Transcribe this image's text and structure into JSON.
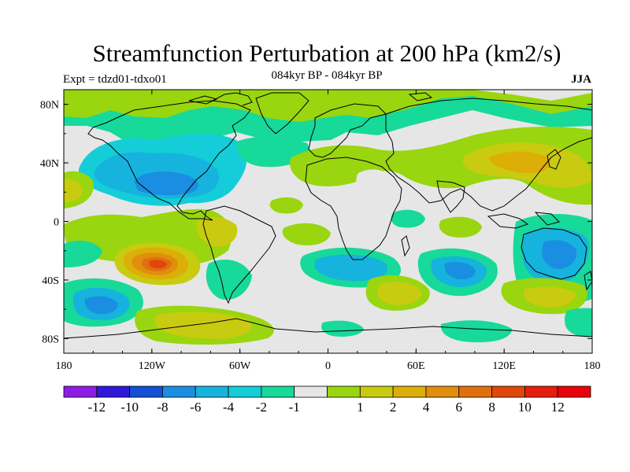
{
  "chart_data": {
    "type": "map",
    "title": "Streamfunction Perturbation at 200 hPa (km2/s)",
    "subtitle": "084kyr BP - 084kyr BP",
    "experiment": "Expt = tdzd01-tdxo01",
    "season": "JJA",
    "projection": "cylindrical equidistant",
    "lon_range": [
      -180,
      180
    ],
    "lat_range": [
      -90,
      90
    ],
    "lat_ticks": [
      "80N",
      "40N",
      "0",
      "40S",
      "80S"
    ],
    "lat_values": [
      80,
      40,
      0,
      -40,
      -80
    ],
    "lon_ticks": [
      "180",
      "120W",
      "60W",
      "0",
      "60E",
      "120E",
      "180"
    ],
    "lon_values": [
      -180,
      -120,
      -60,
      0,
      60,
      120,
      180
    ],
    "colorbar": {
      "colors": [
        "#8d1ce6",
        "#2f18d8",
        "#1450d6",
        "#1a8ee0",
        "#15b3dd",
        "#14cdd8",
        "#17d99a",
        "#e6e6e6",
        "#99d60f",
        "#c9cb10",
        "#dcae07",
        "#e08e0e",
        "#e0700e",
        "#e0470b",
        "#e51e0e",
        "#e8000c"
      ],
      "labels": [
        "-12",
        "-10",
        "-8",
        "-6",
        "-4",
        "-2",
        "-1",
        "1",
        "2",
        "4",
        "6",
        "8",
        "10",
        "12"
      ]
    },
    "anomalies": [
      {
        "lon": -105,
        "lat": 32,
        "value": -6,
        "rx": 40,
        "ry": 22
      },
      {
        "lon": -95,
        "lat": 22,
        "value": -6,
        "rx": 18,
        "ry": 10
      },
      {
        "lon": -160,
        "lat": -55,
        "value": -4,
        "rx": 28,
        "ry": 14
      },
      {
        "lon": 85,
        "lat": -33,
        "value": -5,
        "rx": 22,
        "ry": 10
      },
      {
        "lon": 150,
        "lat": -18,
        "value": -5,
        "rx": 20,
        "ry": 22
      },
      {
        "lon": -120,
        "lat": -28,
        "value": 10,
        "rx": 16,
        "ry": 8
      },
      {
        "lon": -118,
        "lat": -30,
        "value": 7,
        "rx": 28,
        "ry": 14
      },
      {
        "lon": 130,
        "lat": 42,
        "value": 5,
        "rx": 35,
        "ry": 16
      },
      {
        "lon": -70,
        "lat": -8,
        "value": 4,
        "rx": 14,
        "ry": 12
      },
      {
        "lon": 50,
        "lat": -50,
        "value": 4,
        "rx": 22,
        "ry": 9
      }
    ],
    "color_range": [
      -12,
      12
    ]
  }
}
